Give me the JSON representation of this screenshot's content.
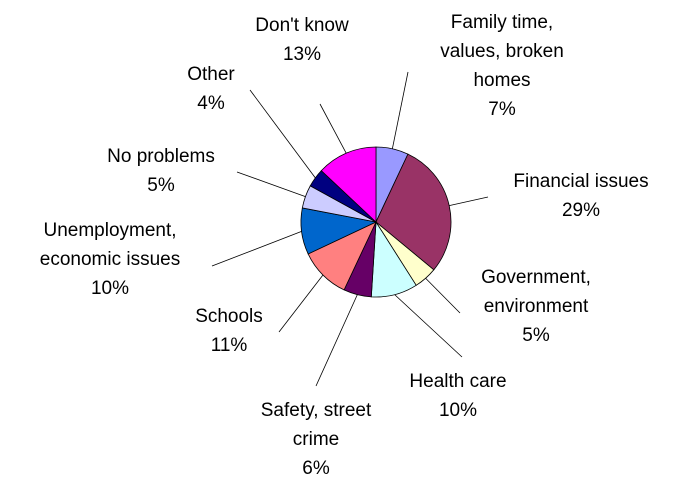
{
  "chart_data": {
    "type": "pie",
    "slices": [
      {
        "label": [
          "Family time,",
          "values, broken",
          "homes"
        ],
        "value_text": "7%",
        "value": 7,
        "color": "#9999ff"
      },
      {
        "label": [
          "Financial issues"
        ],
        "value_text": "29%",
        "value": 29,
        "color": "#993366"
      },
      {
        "label": [
          "Government,",
          "environment"
        ],
        "value_text": "5%",
        "value": 5,
        "color": "#ffffcc"
      },
      {
        "label": [
          "Health care"
        ],
        "value_text": "10%",
        "value": 10,
        "color": "#ccffff"
      },
      {
        "label": [
          "Safety, street",
          "crime"
        ],
        "value_text": "6%",
        "value": 6,
        "color": "#660066"
      },
      {
        "label": [
          "Schools"
        ],
        "value_text": "11%",
        "value": 11,
        "color": "#ff8080"
      },
      {
        "label": [
          "Unemployment,",
          "economic issues"
        ],
        "value_text": "10%",
        "value": 10,
        "color": "#0066cc"
      },
      {
        "label": [
          "No problems"
        ],
        "value_text": "5%",
        "value": 5,
        "color": "#ccccff"
      },
      {
        "label": [
          "Other"
        ],
        "value_text": "4%",
        "value": 4,
        "color": "#000080"
      },
      {
        "label": [
          "Don't know"
        ],
        "value_text": "13%",
        "value": 13,
        "color": "#ff00ff"
      }
    ]
  }
}
